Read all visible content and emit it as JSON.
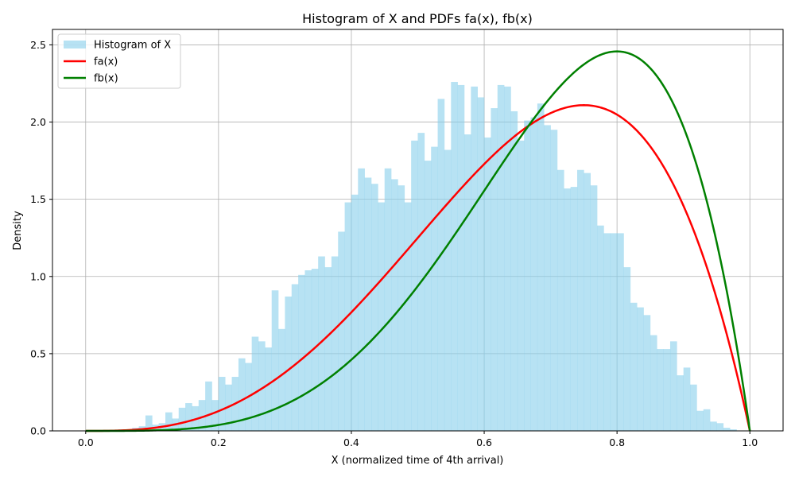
{
  "chart_data": {
    "type": "histogram",
    "title": "Histogram of X and PDFs fa(x), fb(x)",
    "xlabel": "X (normalized time of 4th arrival)",
    "ylabel": "Density",
    "xlim": [
      -0.05,
      1.05
    ],
    "ylim": [
      0,
      2.6
    ],
    "xticks": [
      0.0,
      0.2,
      0.4,
      0.6,
      0.8,
      1.0
    ],
    "xtick_labels": [
      "0.0",
      "0.2",
      "0.4",
      "0.6",
      "0.8",
      "1.0"
    ],
    "yticks": [
      0.0,
      0.5,
      1.0,
      1.5,
      2.0,
      2.5
    ],
    "ytick_labels": [
      "0.0",
      "0.5",
      "1.0",
      "1.5",
      "2.0",
      "2.5"
    ],
    "grid": true,
    "legend_position": "top-left",
    "histogram": {
      "name": "Histogram of X",
      "color": "#87ceeb",
      "opacity": 0.6,
      "bin_width": 0.01,
      "bin_start": 0.0,
      "values": [
        0,
        0,
        0,
        0,
        0,
        0.01,
        0.01,
        0.02,
        0.03,
        0.1,
        0.04,
        0.05,
        0.12,
        0.08,
        0.15,
        0.18,
        0.16,
        0.2,
        0.32,
        0.2,
        0.35,
        0.3,
        0.35,
        0.47,
        0.44,
        0.61,
        0.58,
        0.54,
        0.91,
        0.66,
        0.87,
        0.95,
        1.01,
        1.04,
        1.05,
        1.13,
        1.06,
        1.13,
        1.29,
        1.48,
        1.53,
        1.7,
        1.64,
        1.6,
        1.48,
        1.7,
        1.63,
        1.59,
        1.48,
        1.88,
        1.93,
        1.75,
        1.84,
        2.15,
        1.82,
        2.26,
        2.24,
        1.92,
        2.23,
        2.16,
        1.9,
        2.09,
        2.24,
        2.23,
        2.07,
        1.88,
        2.01,
        2.03,
        2.12,
        1.98,
        1.95,
        1.69,
        1.57,
        1.58,
        1.69,
        1.67,
        1.59,
        1.33,
        1.28,
        1.28,
        1.28,
        1.06,
        0.83,
        0.8,
        0.75,
        0.62,
        0.53,
        0.53,
        0.58,
        0.36,
        0.41,
        0.3,
        0.13,
        0.14,
        0.06,
        0.05,
        0.02,
        0.01,
        0,
        0,
        0
      ]
    },
    "series": [
      {
        "name": "fa(x)",
        "color": "#ff0000",
        "formula": "20*x^3*(1-x)",
        "x": [
          0.0,
          0.05,
          0.1,
          0.15,
          0.2,
          0.25,
          0.3,
          0.35,
          0.4,
          0.45,
          0.5,
          0.55,
          0.6,
          0.65,
          0.7,
          0.75,
          0.8,
          0.85,
          0.9,
          0.95,
          1.0
        ],
        "y": [
          0.0,
          0.0024,
          0.018,
          0.0574,
          0.128,
          0.2344,
          0.378,
          0.5574,
          0.768,
          1.0024,
          1.25,
          1.4974,
          1.728,
          1.9224,
          2.058,
          2.1094,
          2.048,
          1.8424,
          1.458,
          0.8574,
          0.0
        ]
      },
      {
        "name": "fb(x)",
        "color": "#008000",
        "formula": "30*x^4*(1-x)",
        "x": [
          0.0,
          0.05,
          0.1,
          0.15,
          0.2,
          0.25,
          0.3,
          0.35,
          0.4,
          0.45,
          0.5,
          0.55,
          0.6,
          0.65,
          0.7,
          0.75,
          0.8,
          0.85,
          0.9,
          0.95,
          1.0
        ],
        "y": [
          0.0,
          0.0002,
          0.0027,
          0.0129,
          0.0384,
          0.0879,
          0.1701,
          0.2926,
          0.4608,
          0.6766,
          0.9375,
          1.2354,
          1.5552,
          1.8743,
          2.1609,
          2.373,
          2.4576,
          2.3491,
          1.9683,
          1.2218,
          0.0
        ]
      }
    ]
  }
}
